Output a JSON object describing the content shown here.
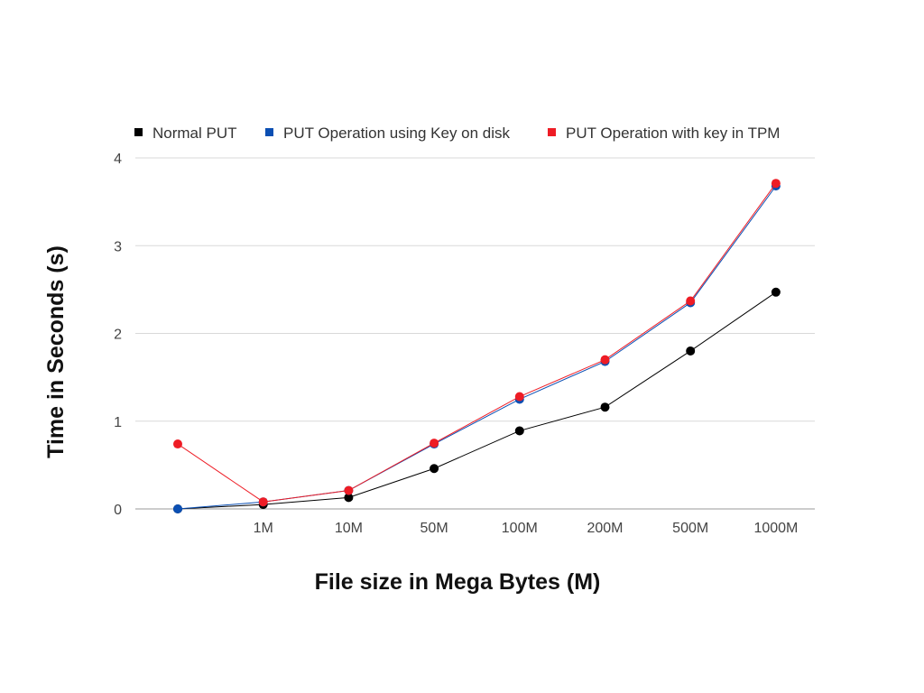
{
  "chart_data": {
    "type": "line",
    "title": "",
    "xlabel": "File size in Mega Bytes (M)",
    "ylabel": "Time in Seconds (s)",
    "categories": [
      "",
      "1M",
      "10M",
      "50M",
      "100M",
      "200M",
      "500M",
      "1000M"
    ],
    "ylim": [
      0,
      4
    ],
    "yticks": [
      "0",
      "1",
      "2",
      "3",
      "4"
    ],
    "grid": true,
    "legend_position": "top",
    "series": [
      {
        "name": "Normal PUT",
        "color": "#000000",
        "values": [
          0.0,
          0.05,
          0.13,
          0.46,
          0.89,
          1.16,
          1.8,
          2.47
        ]
      },
      {
        "name": "PUT Operation using Key on disk",
        "color": "#0b4fb3",
        "values": [
          0.0,
          0.08,
          0.21,
          0.74,
          1.25,
          1.68,
          2.35,
          3.68
        ]
      },
      {
        "name": "PUT Operation with key in TPM",
        "color": "#ee1c25",
        "values": [
          0.74,
          0.08,
          0.21,
          0.75,
          1.28,
          1.7,
          2.37,
          3.71
        ]
      }
    ]
  }
}
